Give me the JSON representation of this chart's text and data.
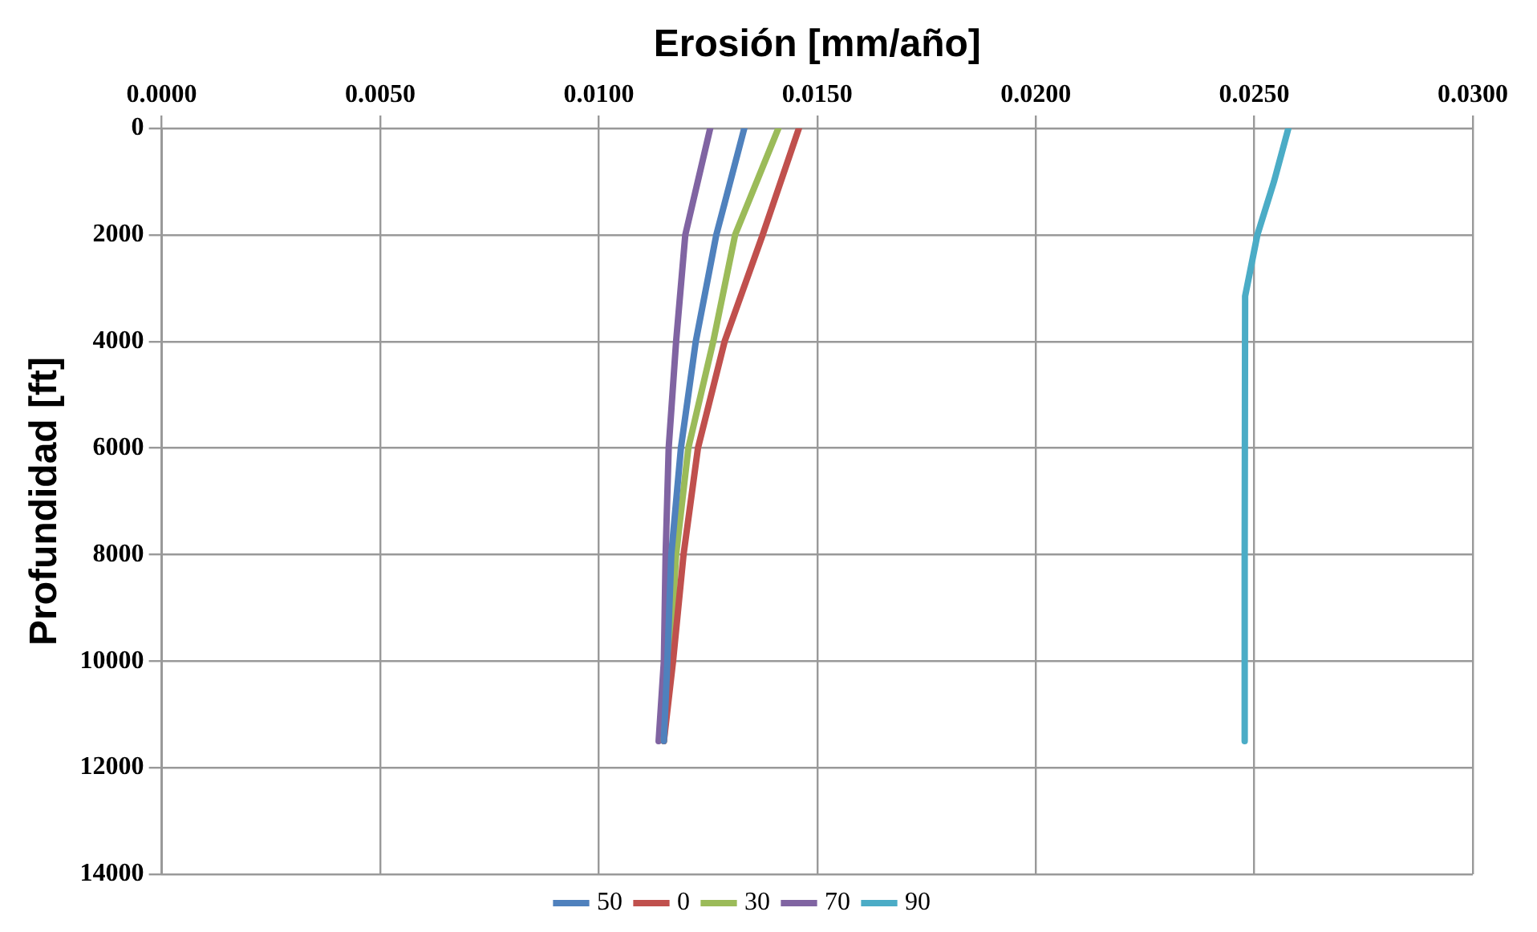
{
  "chart_data": {
    "type": "line",
    "xlabel": "Erosión [mm/año]",
    "ylabel": "Profundidad [ft]",
    "xlim": [
      0,
      0.03
    ],
    "xticks": [
      {
        "value": 0,
        "label": "0.0000"
      },
      {
        "value": 0.005,
        "label": "0.0050"
      },
      {
        "value": 0.01,
        "label": "0.0100"
      },
      {
        "value": 0.015,
        "label": "0.0150"
      },
      {
        "value": 0.02,
        "label": "0.0200"
      },
      {
        "value": 0.025,
        "label": "0.0250"
      },
      {
        "value": 0.03,
        "label": "0.0300"
      }
    ],
    "ylim": [
      14000,
      0
    ],
    "yticks": [
      0,
      2000,
      4000,
      6000,
      8000,
      10000,
      12000,
      14000
    ],
    "grid": true,
    "legend": "bottom",
    "marker": "none",
    "line_style": "solid",
    "series": [
      {
        "name": "50",
        "color": "#4f81bd",
        "x": [
          0.01333,
          0.01269,
          0.01222,
          0.01188,
          0.01166,
          0.01157,
          0.01149
        ],
        "values": [
          0,
          2000,
          4000,
          6000,
          8000,
          10000,
          11500
        ]
      },
      {
        "name": "0",
        "color": "#c0504d",
        "x": [
          0.01458,
          0.01375,
          0.01288,
          0.01227,
          0.01194,
          0.0117,
          0.01149
        ],
        "values": [
          0,
          2000,
          4000,
          6000,
          8000,
          10000,
          11500
        ]
      },
      {
        "name": "30",
        "color": "#9bbb59",
        "x": [
          0.01411,
          0.01312,
          0.01262,
          0.01205,
          0.01177,
          0.01163,
          0.01149
        ],
        "values": [
          0,
          2000,
          4000,
          6000,
          8000,
          10000,
          11500
        ]
      },
      {
        "name": "70",
        "color": "#8064a2",
        "x": [
          0.01255,
          0.01198,
          0.01177,
          0.0116,
          0.01153,
          0.01149,
          0.01137
        ],
        "values": [
          0,
          2000,
          4000,
          6000,
          8000,
          10000,
          11500
        ]
      },
      {
        "name": "90",
        "color": "#4bacc6",
        "x": [
          0.02578,
          0.02545,
          0.02507,
          0.02479,
          0.02478,
          0.02478
        ],
        "values": [
          0,
          1000,
          2000,
          3150,
          8000,
          11500
        ]
      }
    ]
  }
}
